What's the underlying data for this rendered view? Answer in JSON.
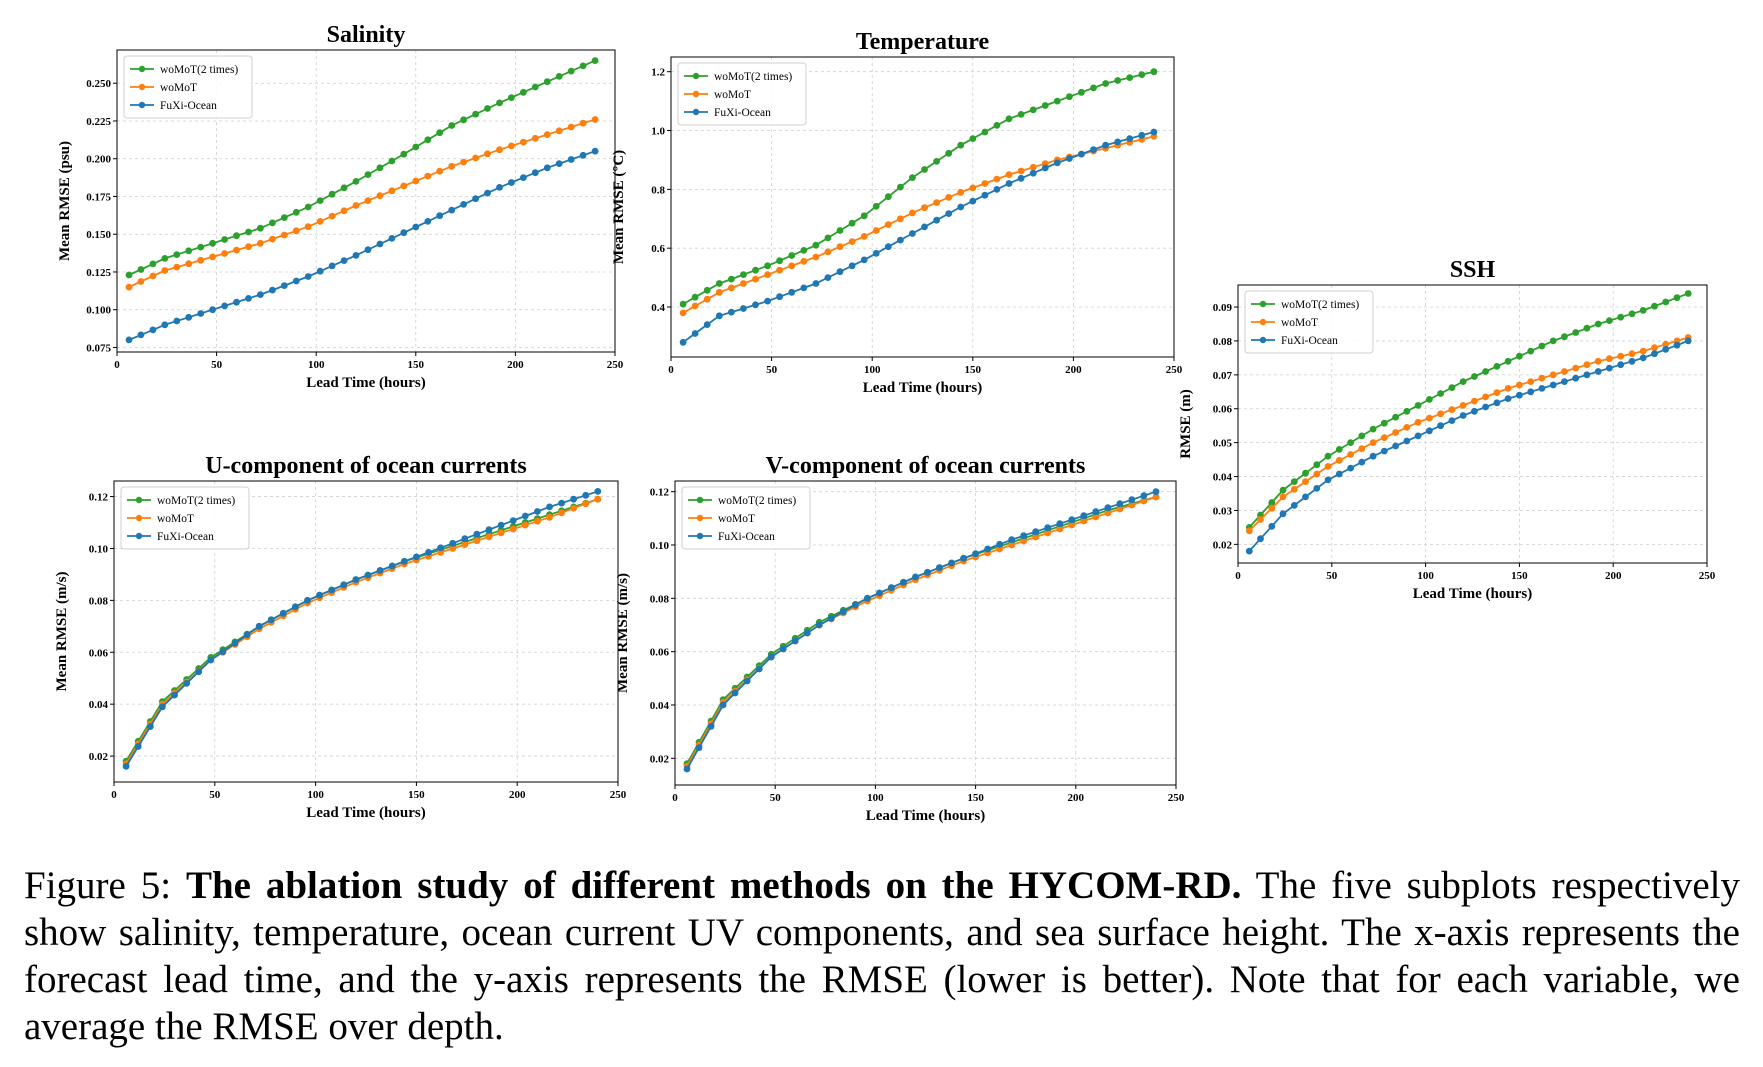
{
  "figure": {
    "caption_label": "Figure 5:",
    "caption_bold": "The ablation study of different methods on the HYCOM-RD.",
    "caption_text": "The five subplots respectively show salinity, temperature, ocean current UV components, and sea surface height. The x-axis represents the forecast lead time, and the y-axis represents the RMSE (lower is better). Note that for each variable, we average the RMSE over depth."
  },
  "colors": {
    "woMoT2": "#2ca02c",
    "woMoT": "#ff7f0e",
    "FuXi": "#1f77b4"
  },
  "chart_data": [
    {
      "id": "salinity",
      "type": "line",
      "title": "Salinity",
      "xlabel": "Lead Time (hours)",
      "ylabel": "Mean RMSE (psu)",
      "xlim": [
        0,
        250
      ],
      "ylim": [
        0.072,
        0.272
      ],
      "xticks": [
        0,
        50,
        100,
        150,
        200,
        250
      ],
      "yticks": [
        0.075,
        0.1,
        0.125,
        0.15,
        0.175,
        0.2,
        0.225,
        0.25
      ],
      "ytick_labels": [
        "0.075",
        "0.100",
        "0.125",
        "0.150",
        "0.175",
        "0.200",
        "0.225",
        "0.250"
      ],
      "x": {
        "start": 6,
        "step": 6,
        "count": 40
      },
      "grid": true,
      "legend": "upper-left",
      "series": [
        {
          "name": "woMoT(2 times)",
          "color_key": "woMoT2",
          "anchors": [
            [
              6,
              0.123
            ],
            [
              24,
              0.134
            ],
            [
              48,
              0.144
            ],
            [
              72,
              0.154
            ],
            [
              96,
              0.168
            ],
            [
              120,
              0.185
            ],
            [
              144,
              0.203
            ],
            [
              168,
              0.222
            ],
            [
              192,
              0.237
            ],
            [
              216,
              0.251
            ],
            [
              240,
              0.265
            ]
          ]
        },
        {
          "name": "woMoT",
          "color_key": "woMoT",
          "anchors": [
            [
              6,
              0.115
            ],
            [
              24,
              0.126
            ],
            [
              48,
              0.135
            ],
            [
              72,
              0.144
            ],
            [
              96,
              0.155
            ],
            [
              120,
              0.169
            ],
            [
              144,
              0.182
            ],
            [
              168,
              0.195
            ],
            [
              192,
              0.206
            ],
            [
              216,
              0.216
            ],
            [
              240,
              0.226
            ]
          ]
        },
        {
          "name": "FuXi-Ocean",
          "color_key": "FuXi",
          "anchors": [
            [
              6,
              0.08
            ],
            [
              24,
              0.09
            ],
            [
              48,
              0.1
            ],
            [
              72,
              0.11
            ],
            [
              96,
              0.122
            ],
            [
              120,
              0.136
            ],
            [
              144,
              0.151
            ],
            [
              168,
              0.166
            ],
            [
              192,
              0.181
            ],
            [
              216,
              0.194
            ],
            [
              240,
              0.205
            ]
          ]
        }
      ]
    },
    {
      "id": "temperature",
      "type": "line",
      "title": "Temperature",
      "xlabel": "Lead Time (hours)",
      "ylabel": "Mean RMSE (°C)",
      "xlim": [
        0,
        250
      ],
      "ylim": [
        0.23,
        1.25
      ],
      "xticks": [
        0,
        50,
        100,
        150,
        200,
        250
      ],
      "yticks": [
        0.4,
        0.6,
        0.8,
        1.0,
        1.2
      ],
      "ytick_labels": [
        "0.4",
        "0.6",
        "0.8",
        "1.0",
        "1.2"
      ],
      "x": {
        "start": 6,
        "step": 6,
        "count": 40
      },
      "grid": true,
      "legend": "upper-left",
      "series": [
        {
          "name": "woMoT(2 times)",
          "color_key": "woMoT2",
          "anchors": [
            [
              6,
              0.41
            ],
            [
              24,
              0.48
            ],
            [
              48,
              0.54
            ],
            [
              72,
              0.61
            ],
            [
              96,
              0.71
            ],
            [
              120,
              0.84
            ],
            [
              144,
              0.95
            ],
            [
              168,
              1.04
            ],
            [
              192,
              1.1
            ],
            [
              216,
              1.16
            ],
            [
              240,
              1.2
            ]
          ]
        },
        {
          "name": "woMoT",
          "color_key": "woMoT",
          "anchors": [
            [
              6,
              0.38
            ],
            [
              24,
              0.45
            ],
            [
              48,
              0.51
            ],
            [
              72,
              0.57
            ],
            [
              96,
              0.64
            ],
            [
              120,
              0.72
            ],
            [
              144,
              0.79
            ],
            [
              168,
              0.85
            ],
            [
              192,
              0.9
            ],
            [
              216,
              0.94
            ],
            [
              240,
              0.98
            ]
          ]
        },
        {
          "name": "FuXi-Ocean",
          "color_key": "FuXi",
          "anchors": [
            [
              6,
              0.28
            ],
            [
              24,
              0.37
            ],
            [
              48,
              0.42
            ],
            [
              72,
              0.48
            ],
            [
              96,
              0.56
            ],
            [
              120,
              0.65
            ],
            [
              144,
              0.74
            ],
            [
              168,
              0.82
            ],
            [
              192,
              0.89
            ],
            [
              216,
              0.95
            ],
            [
              240,
              0.995
            ]
          ]
        }
      ]
    },
    {
      "id": "ssh",
      "type": "line",
      "title": "SSH",
      "xlabel": "Lead Time (hours)",
      "ylabel": "RMSE (m)",
      "xlim": [
        0,
        250
      ],
      "ylim": [
        0.0145,
        0.0965
      ],
      "xticks": [
        0,
        50,
        100,
        150,
        200,
        250
      ],
      "yticks": [
        0.02,
        0.03,
        0.04,
        0.05,
        0.06,
        0.07,
        0.08,
        0.09
      ],
      "ytick_labels": [
        "0.02",
        "0.03",
        "0.04",
        "0.05",
        "0.06",
        "0.07",
        "0.08",
        "0.09"
      ],
      "x": {
        "start": 6,
        "step": 6,
        "count": 40
      },
      "grid": true,
      "legend": "upper-left",
      "series": [
        {
          "name": "woMoT(2 times)",
          "color_key": "woMoT2",
          "anchors": [
            [
              6,
              0.025
            ],
            [
              24,
              0.036
            ],
            [
              48,
              0.046
            ],
            [
              72,
              0.054
            ],
            [
              96,
              0.061
            ],
            [
              120,
              0.068
            ],
            [
              144,
              0.074
            ],
            [
              168,
              0.08
            ],
            [
              192,
              0.085
            ],
            [
              216,
              0.089
            ],
            [
              240,
              0.094
            ]
          ]
        },
        {
          "name": "woMoT",
          "color_key": "woMoT",
          "anchors": [
            [
              6,
              0.024
            ],
            [
              24,
              0.034
            ],
            [
              48,
              0.043
            ],
            [
              72,
              0.05
            ],
            [
              96,
              0.056
            ],
            [
              120,
              0.061
            ],
            [
              144,
              0.066
            ],
            [
              168,
              0.07
            ],
            [
              192,
              0.074
            ],
            [
              216,
              0.077
            ],
            [
              240,
              0.081
            ]
          ]
        },
        {
          "name": "FuXi-Ocean",
          "color_key": "FuXi",
          "anchors": [
            [
              6,
              0.018
            ],
            [
              24,
              0.029
            ],
            [
              48,
              0.039
            ],
            [
              72,
              0.046
            ],
            [
              96,
              0.052
            ],
            [
              120,
              0.058
            ],
            [
              144,
              0.063
            ],
            [
              168,
              0.067
            ],
            [
              192,
              0.071
            ],
            [
              216,
              0.075
            ],
            [
              240,
              0.08
            ]
          ]
        }
      ]
    },
    {
      "id": "u-current",
      "type": "line",
      "title": "U-component of ocean currents",
      "xlabel": "Lead Time (hours)",
      "ylabel": "Mean RMSE (m/s)",
      "xlim": [
        0,
        250
      ],
      "ylim": [
        0.01,
        0.126
      ],
      "xticks": [
        0,
        50,
        100,
        150,
        200,
        250
      ],
      "yticks": [
        0.02,
        0.04,
        0.06,
        0.08,
        0.1,
        0.12
      ],
      "ytick_labels": [
        "0.02",
        "0.04",
        "0.06",
        "0.08",
        "0.10",
        "0.12"
      ],
      "x": {
        "start": 6,
        "step": 6,
        "count": 40
      },
      "grid": true,
      "legend": "upper-left",
      "series": [
        {
          "name": "woMoT(2 times)",
          "color_key": "woMoT2",
          "anchors": [
            [
              6,
              0.018
            ],
            [
              24,
              0.041
            ],
            [
              48,
              0.058
            ],
            [
              72,
              0.07
            ],
            [
              96,
              0.08
            ],
            [
              120,
              0.088
            ],
            [
              144,
              0.095
            ],
            [
              168,
              0.101
            ],
            [
              192,
              0.107
            ],
            [
              216,
              0.113
            ],
            [
              240,
              0.119
            ]
          ]
        },
        {
          "name": "woMoT",
          "color_key": "woMoT",
          "anchors": [
            [
              6,
              0.017
            ],
            [
              24,
              0.04
            ],
            [
              48,
              0.057
            ],
            [
              72,
              0.069
            ],
            [
              96,
              0.079
            ],
            [
              120,
              0.087
            ],
            [
              144,
              0.094
            ],
            [
              168,
              0.1
            ],
            [
              192,
              0.106
            ],
            [
              216,
              0.112
            ],
            [
              240,
              0.119
            ]
          ]
        },
        {
          "name": "FuXi-Ocean",
          "color_key": "FuXi",
          "anchors": [
            [
              6,
              0.016
            ],
            [
              24,
              0.039
            ],
            [
              48,
              0.057
            ],
            [
              72,
              0.07
            ],
            [
              96,
              0.08
            ],
            [
              120,
              0.088
            ],
            [
              144,
              0.095
            ],
            [
              168,
              0.102
            ],
            [
              192,
              0.109
            ],
            [
              216,
              0.116
            ],
            [
              240,
              0.122
            ]
          ]
        }
      ]
    },
    {
      "id": "v-current",
      "type": "line",
      "title": "V-component of ocean currents",
      "xlabel": "Lead Time (hours)",
      "ylabel": "Mean RMSE (m/s)",
      "xlim": [
        0,
        250
      ],
      "ylim": [
        0.01,
        0.124
      ],
      "xticks": [
        0,
        50,
        100,
        150,
        200,
        250
      ],
      "yticks": [
        0.02,
        0.04,
        0.06,
        0.08,
        0.1,
        0.12
      ],
      "ytick_labels": [
        "0.02",
        "0.04",
        "0.06",
        "0.08",
        "0.10",
        "0.12"
      ],
      "x": {
        "start": 6,
        "step": 6,
        "count": 40
      },
      "grid": true,
      "legend": "upper-left",
      "series": [
        {
          "name": "woMoT(2 times)",
          "color_key": "woMoT2",
          "anchors": [
            [
              6,
              0.018
            ],
            [
              24,
              0.042
            ],
            [
              48,
              0.059
            ],
            [
              72,
              0.071
            ],
            [
              96,
              0.08
            ],
            [
              120,
              0.088
            ],
            [
              144,
              0.095
            ],
            [
              168,
              0.101
            ],
            [
              192,
              0.107
            ],
            [
              216,
              0.113
            ],
            [
              240,
              0.118
            ]
          ]
        },
        {
          "name": "woMoT",
          "color_key": "woMoT",
          "anchors": [
            [
              6,
              0.017
            ],
            [
              24,
              0.041
            ],
            [
              48,
              0.058
            ],
            [
              72,
              0.07
            ],
            [
              96,
              0.079
            ],
            [
              120,
              0.087
            ],
            [
              144,
              0.094
            ],
            [
              168,
              0.1
            ],
            [
              192,
              0.106
            ],
            [
              216,
              0.112
            ],
            [
              240,
              0.118
            ]
          ]
        },
        {
          "name": "FuXi-Ocean",
          "color_key": "FuXi",
          "anchors": [
            [
              6,
              0.016
            ],
            [
              24,
              0.04
            ],
            [
              48,
              0.058
            ],
            [
              72,
              0.07
            ],
            [
              96,
              0.08
            ],
            [
              120,
              0.088
            ],
            [
              144,
              0.095
            ],
            [
              168,
              0.102
            ],
            [
              192,
              0.108
            ],
            [
              216,
              0.114
            ],
            [
              240,
              0.12
            ]
          ]
        }
      ]
    }
  ]
}
